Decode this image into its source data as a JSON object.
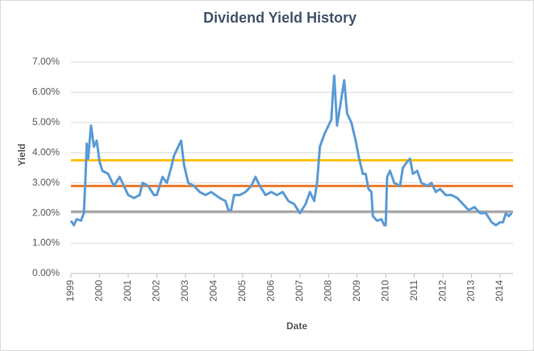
{
  "chart_data": {
    "type": "line",
    "title": "Dividend Yield History",
    "x_label": "Date",
    "y_label": "Yield",
    "color": "#5b9bd5",
    "x": [
      1999.0,
      1999.1,
      1999.2,
      1999.35,
      1999.45,
      1999.5,
      1999.55,
      1999.6,
      1999.7,
      1999.8,
      1999.9,
      2000.0,
      2000.1,
      2000.3,
      2000.5,
      2000.7,
      2000.9,
      2001.0,
      2001.2,
      2001.4,
      2001.5,
      2001.7,
      2001.9,
      2002.0,
      2002.2,
      2002.35,
      2002.5,
      2002.6,
      2002.75,
      2002.85,
      2002.95,
      2003.1,
      2003.3,
      2003.5,
      2003.7,
      2003.9,
      2004.2,
      2004.4,
      2004.5,
      2004.6,
      2004.7,
      2004.9,
      2005.1,
      2005.3,
      2005.45,
      2005.6,
      2005.8,
      2006.0,
      2006.2,
      2006.4,
      2006.6,
      2006.8,
      2007.0,
      2007.2,
      2007.35,
      2007.5,
      2007.6,
      2007.7,
      2007.85,
      2008.0,
      2008.1,
      2008.15,
      2008.2,
      2008.3,
      2008.45,
      2008.55,
      2008.65,
      2008.8,
      2008.95,
      2009.05,
      2009.2,
      2009.3,
      2009.4,
      2009.5,
      2009.55,
      2009.7,
      2009.85,
      2009.95,
      2010.0,
      2010.05,
      2010.15,
      2010.3,
      2010.5,
      2010.6,
      2010.75,
      2010.85,
      2010.95,
      2011.1,
      2011.25,
      2011.45,
      2011.6,
      2011.75,
      2011.9,
      2012.1,
      2012.3,
      2012.5,
      2012.7,
      2012.9,
      2013.1,
      2013.3,
      2013.5,
      2013.7,
      2013.85,
      2014.0,
      2014.1,
      2014.2,
      2014.3,
      2014.4
    ],
    "values": [
      1.75,
      1.6,
      1.8,
      1.75,
      2.0,
      3.0,
      4.3,
      3.8,
      4.9,
      4.2,
      4.4,
      3.7,
      3.4,
      3.3,
      2.9,
      3.2,
      2.8,
      2.6,
      2.5,
      2.6,
      3.0,
      2.9,
      2.6,
      2.6,
      3.2,
      3.0,
      3.5,
      3.9,
      4.2,
      4.4,
      3.6,
      3.0,
      2.9,
      2.7,
      2.6,
      2.7,
      2.5,
      2.4,
      2.1,
      2.1,
      2.6,
      2.6,
      2.7,
      2.9,
      3.2,
      2.9,
      2.6,
      2.7,
      2.6,
      2.7,
      2.4,
      2.3,
      2.0,
      2.3,
      2.7,
      2.4,
      3.0,
      4.2,
      4.6,
      4.9,
      5.1,
      5.9,
      6.55,
      4.9,
      5.8,
      6.4,
      5.3,
      5.0,
      4.4,
      3.9,
      3.3,
      3.3,
      2.8,
      2.7,
      1.9,
      1.75,
      1.8,
      1.6,
      1.6,
      3.2,
      3.4,
      3.0,
      2.9,
      3.5,
      3.7,
      3.8,
      3.3,
      3.4,
      3.0,
      2.9,
      3.0,
      2.7,
      2.8,
      2.6,
      2.6,
      2.5,
      2.3,
      2.1,
      2.2,
      2.0,
      2.0,
      1.7,
      1.6,
      1.7,
      1.7,
      2.0,
      1.9,
      2.0
    ],
    "reference_lines": [
      {
        "value": 3.75,
        "color": "#ffc000"
      },
      {
        "value": 2.9,
        "color": "#ed7d31"
      },
      {
        "value": 2.05,
        "color": "#a5a5a5"
      }
    ],
    "xlim": [
      1999,
      2014.45
    ],
    "xticks": [
      1999,
      2000,
      2001,
      2002,
      2003,
      2004,
      2005,
      2006,
      2007,
      2008,
      2009,
      2010,
      2011,
      2012,
      2013,
      2014
    ],
    "ylim": [
      0,
      7
    ],
    "yticks": [
      {
        "value": 0,
        "label": "0.00%"
      },
      {
        "value": 1,
        "label": "1.00%"
      },
      {
        "value": 2,
        "label": "2.00%"
      },
      {
        "value": 3,
        "label": "3.00%"
      },
      {
        "value": 4,
        "label": "4.00%"
      },
      {
        "value": 5,
        "label": "5.00%"
      },
      {
        "value": 6,
        "label": "6.00%"
      },
      {
        "value": 7,
        "label": "7.00%"
      }
    ],
    "grid": true
  }
}
